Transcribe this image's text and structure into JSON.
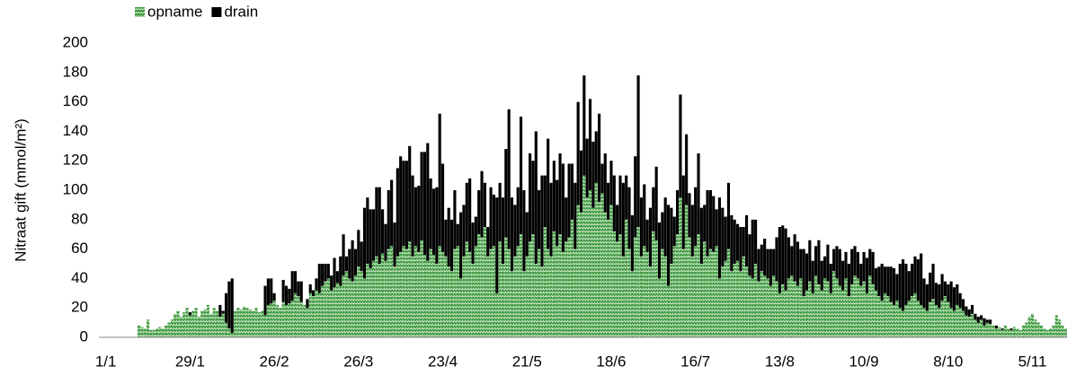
{
  "chart_data": {
    "type": "stacked_bar",
    "y_label": "Nitraat gift (mmol/m²)",
    "legend": "top-left",
    "ylim": [
      0,
      200
    ],
    "yticks": [
      0,
      20,
      40,
      60,
      80,
      100,
      120,
      140,
      160,
      180,
      200
    ],
    "categories": [
      "1/1",
      null,
      null,
      null,
      null,
      null,
      null,
      null,
      null,
      null,
      null,
      null,
      null,
      null,
      null,
      null,
      null,
      null,
      null,
      null,
      null,
      null,
      null,
      null,
      null,
      null,
      null,
      null,
      "29/1",
      null,
      null,
      null,
      null,
      null,
      null,
      null,
      null,
      null,
      null,
      null,
      null,
      null,
      null,
      null,
      null,
      null,
      null,
      null,
      null,
      null,
      null,
      null,
      null,
      null,
      null,
      null,
      "26/2",
      null,
      null,
      null,
      null,
      null,
      null,
      null,
      null,
      null,
      null,
      null,
      null,
      null,
      null,
      null,
      null,
      null,
      null,
      null,
      null,
      null,
      null,
      null,
      null,
      null,
      null,
      null,
      "26/3",
      null,
      null,
      null,
      null,
      null,
      null,
      null,
      null,
      null,
      null,
      null,
      null,
      null,
      null,
      null,
      null,
      null,
      null,
      null,
      null,
      null,
      null,
      null,
      null,
      null,
      null,
      null,
      "23/4",
      null,
      null,
      null,
      null,
      null,
      null,
      null,
      null,
      null,
      null,
      null,
      null,
      null,
      null,
      null,
      null,
      null,
      null,
      null,
      null,
      null,
      null,
      null,
      null,
      null,
      null,
      null,
      "21/5",
      null,
      null,
      null,
      null,
      null,
      null,
      null,
      null,
      null,
      null,
      null,
      null,
      null,
      null,
      null,
      null,
      null,
      null,
      null,
      null,
      null,
      null,
      null,
      null,
      null,
      null,
      null,
      "18/6",
      null,
      null,
      null,
      null,
      null,
      null,
      null,
      null,
      null,
      null,
      null,
      null,
      null,
      null,
      null,
      null,
      null,
      null,
      null,
      null,
      null,
      null,
      null,
      null,
      null,
      null,
      null,
      "16/7",
      null,
      null,
      null,
      null,
      null,
      null,
      null,
      null,
      null,
      null,
      null,
      null,
      null,
      null,
      null,
      null,
      null,
      null,
      null,
      null,
      null,
      null,
      null,
      null,
      null,
      null,
      null,
      "13/8",
      null,
      null,
      null,
      null,
      null,
      null,
      null,
      null,
      null,
      null,
      null,
      null,
      null,
      null,
      null,
      null,
      null,
      null,
      null,
      null,
      null,
      null,
      null,
      null,
      null,
      null,
      null,
      "10/9",
      null,
      null,
      null,
      null,
      null,
      null,
      null,
      null,
      null,
      null,
      null,
      null,
      null,
      null,
      null,
      null,
      null,
      null,
      null,
      null,
      null,
      null,
      null,
      null,
      null,
      null,
      null,
      "8/10",
      null,
      null,
      null,
      null,
      null,
      null,
      null,
      null,
      null,
      null,
      null,
      null,
      null,
      null,
      null,
      null,
      null,
      null,
      null,
      null,
      null,
      null,
      null,
      null,
      null,
      null,
      null,
      "5/11",
      null,
      null,
      null,
      null,
      null,
      null,
      null,
      null,
      null,
      null,
      null
    ],
    "series": [
      {
        "name": "opname",
        "color": "#3f9b3f",
        "values": [
          null,
          null,
          null,
          null,
          null,
          null,
          null,
          null,
          null,
          null,
          null,
          8,
          7,
          6,
          12,
          5,
          5,
          6,
          7,
          6,
          8,
          10,
          12,
          16,
          18,
          14,
          17,
          20,
          15,
          18,
          20,
          14,
          18,
          19,
          22,
          16,
          20,
          18,
          14,
          16,
          10,
          6,
          3,
          18,
          20,
          19,
          21,
          20,
          19,
          18,
          20,
          17,
          18,
          15,
          22,
          23,
          25,
          22,
          20,
          24,
          22,
          23,
          25,
          30,
          28,
          24,
          22,
          20,
          30,
          28,
          32,
          30,
          35,
          38,
          40,
          32,
          34,
          37,
          35,
          42,
          45,
          40,
          38,
          42,
          48,
          45,
          40,
          50,
          47,
          52,
          55,
          50,
          57,
          52,
          60,
          62,
          48,
          55,
          58,
          62,
          60,
          65,
          55,
          62,
          58,
          66,
          56,
          52,
          60,
          56,
          50,
          62,
          58,
          55,
          48,
          45,
          60,
          62,
          40,
          55,
          65,
          58,
          50,
          62,
          70,
          68,
          75,
          55,
          60,
          62,
          30,
          65,
          50,
          68,
          60,
          45,
          55,
          62,
          70,
          45,
          55,
          65,
          70,
          50,
          60,
          48,
          75,
          60,
          55,
          72,
          62,
          70,
          58,
          65,
          68,
          80,
          60,
          90,
          85,
          110,
          95,
          100,
          88,
          105,
          92,
          98,
          85,
          80,
          90,
          72,
          65,
          70,
          55,
          80,
          60,
          45,
          68,
          75,
          55,
          62,
          58,
          48,
          72,
          66,
          40,
          60,
          55,
          35,
          50,
          62,
          70,
          95,
          60,
          90,
          68,
          55,
          62,
          70,
          50,
          65,
          55,
          60,
          58,
          62,
          40,
          48,
          52,
          60,
          45,
          50,
          52,
          45,
          55,
          48,
          42,
          40,
          50,
          38,
          45,
          42,
          40,
          35,
          42,
          38,
          30,
          36,
          32,
          40,
          42,
          38,
          35,
          40,
          28,
          32,
          38,
          30,
          42,
          36,
          32,
          40,
          38,
          30,
          45,
          40,
          35,
          32,
          40,
          28,
          36,
          42,
          40,
          35,
          38,
          30,
          42,
          36,
          32,
          28,
          25,
          30,
          28,
          24,
          22,
          25,
          20,
          18,
          22,
          25,
          28,
          30,
          25,
          22,
          20,
          18,
          24,
          26,
          22,
          20,
          25,
          28,
          24,
          20,
          18,
          22,
          20,
          18,
          15,
          14,
          16,
          12,
          10,
          12,
          8,
          10,
          9,
          8,
          6,
          7,
          5,
          8,
          6,
          5,
          7,
          6,
          5,
          8,
          10,
          14,
          16,
          12,
          10,
          8,
          6,
          5,
          6,
          8,
          15,
          12,
          8,
          6
        ]
      },
      {
        "name": "drain",
        "color": "#000000",
        "values": [
          null,
          null,
          null,
          null,
          null,
          null,
          null,
          null,
          null,
          null,
          null,
          0,
          0,
          0,
          0,
          0,
          0,
          0,
          0,
          0,
          0,
          0,
          0,
          0,
          0,
          0,
          0,
          0,
          2,
          0,
          0,
          0,
          0,
          0,
          0,
          0,
          0,
          0,
          8,
          2,
          20,
          32,
          37,
          0,
          0,
          0,
          0,
          0,
          0,
          0,
          0,
          0,
          0,
          20,
          18,
          17,
          5,
          0,
          0,
          15,
          13,
          10,
          20,
          15,
          10,
          14,
          0,
          6,
          6,
          4,
          8,
          20,
          15,
          12,
          10,
          10,
          20,
          8,
          20,
          28,
          10,
          20,
          28,
          18,
          25,
          20,
          48,
          45,
          40,
          35,
          47,
          52,
          30,
          25,
          40,
          45,
          30,
          60,
          65,
          58,
          60,
          65,
          55,
          40,
          45,
          60,
          70,
          80,
          48,
          45,
          52,
          90,
          60,
          25,
          40,
          35,
          40,
          15,
          45,
          35,
          40,
          50,
          28,
          20,
          30,
          45,
          30,
          20,
          42,
          35,
          65,
          40,
          45,
          60,
          95,
          50,
          35,
          40,
          80,
          55,
          30,
          60,
          50,
          90,
          40,
          62,
          35,
          75,
          50,
          48,
          45,
          55,
          60,
          30,
          50,
          38,
          45,
          70,
          42,
          68,
          40,
          62,
          45,
          35,
          60,
          20,
          40,
          25,
          30,
          38,
          25,
          40,
          50,
          30,
          42,
          38,
          55,
          103,
          40,
          42,
          22,
          40,
          30,
          50,
          38,
          25,
          40,
          55,
          38,
          20,
          30,
          70,
          50,
          48,
          30,
          35,
          40,
          55,
          38,
          25,
          45,
          40,
          38,
          25,
          55,
          40,
          30,
          45,
          38,
          30,
          25,
          30,
          20,
          35,
          28,
          40,
          30,
          22,
          18,
          25,
          20,
          25,
          18,
          30,
          45,
          40,
          42,
          28,
          20,
          32,
          30,
          20,
          32,
          25,
          28,
          22,
          20,
          30,
          20,
          15,
          25,
          20,
          15,
          22,
          25,
          20,
          18,
          22,
          24,
          20,
          18,
          15,
          20,
          24,
          18,
          22,
          15,
          20,
          25,
          18,
          20,
          24,
          25,
          18,
          30,
          35,
          28,
          20,
          22,
          25,
          28,
          35,
          20,
          18,
          20,
          24,
          15,
          16,
          18,
          10,
          12,
          18,
          16,
          14,
          10,
          8,
          6,
          5,
          6,
          4,
          4,
          3,
          5,
          2,
          3,
          0,
          2,
          0,
          1,
          0,
          0,
          1,
          0,
          0,
          0,
          0,
          0,
          0,
          0,
          0,
          0,
          0,
          0,
          0,
          0,
          0,
          0,
          0,
          0,
          0
        ]
      }
    ]
  }
}
